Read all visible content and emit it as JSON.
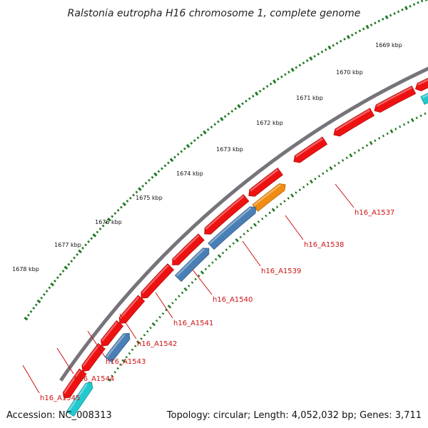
{
  "title": "Ralstonia eutropha H16 chromosome 1, complete genome",
  "footer": {
    "accession": "Accession: NC_008313",
    "summary": "Topology: circular; Length: 4,052,032 bp; Genes: 3,711"
  },
  "colors": {
    "backbone": "#77737a",
    "tick": "#1f7a1f",
    "forward_gene": "#ee1111",
    "reverse_gene_blue": "#4a7fb5",
    "reverse_gene_orange": "#f08c10",
    "reverse_gene_cyan": "#22c8d0",
    "label": "#cc1111"
  },
  "scale_labels": [
    "1669 kbp",
    "1670 kbp",
    "1671 kbp",
    "1672 kbp",
    "1673 kbp",
    "1674 kbp",
    "1675 kbp",
    "1676 kbp",
    "1677 kbp",
    "1678 kbp"
  ],
  "gene_labels": [
    "h16_A1537",
    "h16_A1538",
    "h16_A1539",
    "h16_A1540",
    "h16_A1541",
    "h16_A1542",
    "h16_A1543",
    "h16_A1544",
    "h16_A1545"
  ]
}
